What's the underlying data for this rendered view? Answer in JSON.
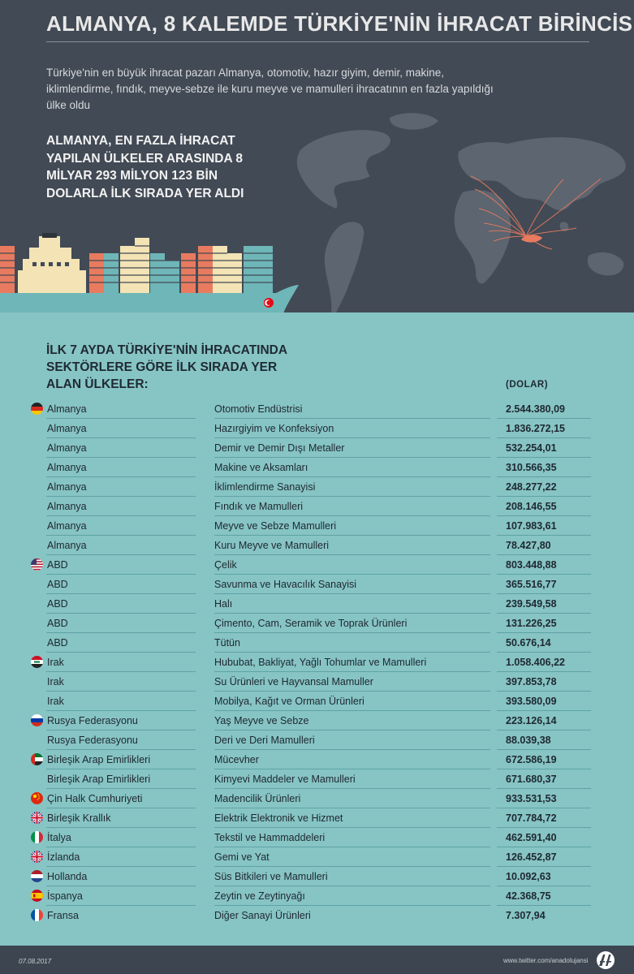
{
  "header": {
    "title": "ALMANYA, 8 KALEMDE TÜRKİYE'NİN İHRACAT BİRİNCİSİ",
    "subtitle": "Türkiye'nin en büyük ihracat pazarı Almanya, otomotiv, hazır giyim, demir, makine, iklimlendirme, fındık, meyve-sebze ile kuru meyve ve mamulleri ihracatının en fazla yapıldığı ülke oldu",
    "headline": "ALMANYA, EN FAZLA İHRACAT YAPILAN ÜLKELER ARASINDA 8 MİLYAR 293 MİLYON 123 BİN DOLARLA İLK SIRADA YER ALDI"
  },
  "table": {
    "title": "İLK 7 AYDA TÜRKİYE'NİN İHRACATINDA SEKTÖRLERE GÖRE İLK SIRADA YER ALAN ÜLKELER:",
    "unit_label": "(DOLAR)",
    "rows": [
      {
        "flag": "germany-flag-icon",
        "country": "Almanya",
        "sector": "Otomotiv Endüstrisi",
        "value": "2.544.380,09"
      },
      {
        "flag": "",
        "country": "Almanya",
        "sector": "Hazırgiyim ve Konfeksiyon",
        "value": "1.836.272,15"
      },
      {
        "flag": "",
        "country": "Almanya",
        "sector": "Demir ve Demir Dışı Metaller",
        "value": "532.254,01"
      },
      {
        "flag": "",
        "country": "Almanya",
        "sector": "Makine ve Aksamları",
        "value": "310.566,35"
      },
      {
        "flag": "",
        "country": "Almanya",
        "sector": "İklimlendirme Sanayisi",
        "value": "248.277,22"
      },
      {
        "flag": "",
        "country": "Almanya",
        "sector": "Fındık ve Mamulleri",
        "value": "208.146,55"
      },
      {
        "flag": "",
        "country": "Almanya",
        "sector": "Meyve ve Sebze Mamulleri",
        "value": "107.983,61"
      },
      {
        "flag": "",
        "country": "Almanya",
        "sector": "Kuru Meyve ve Mamulleri",
        "value": "78.427,80"
      },
      {
        "flag": "usa-flag-icon",
        "country": "ABD",
        "sector": "Çelik",
        "value": "803.448,88"
      },
      {
        "flag": "",
        "country": "ABD",
        "sector": "Savunma ve Havacılık Sanayisi",
        "value": "365.516,77"
      },
      {
        "flag": "",
        "country": "ABD",
        "sector": "Halı",
        "value": "239.549,58"
      },
      {
        "flag": "",
        "country": "ABD",
        "sector": "Çimento, Cam, Seramik ve Toprak Ürünleri",
        "value": "131.226,25"
      },
      {
        "flag": "",
        "country": "ABD",
        "sector": "Tütün",
        "value": "50.676,14"
      },
      {
        "flag": "iraq-flag-icon",
        "country": "Irak",
        "sector": "Hububat, Bakliyat, Yağlı Tohumlar ve Mamulleri",
        "value": "1.058.406,22"
      },
      {
        "flag": "",
        "country": "Irak",
        "sector": "Su Ürünleri ve Hayvansal Mamuller",
        "value": "397.853,78"
      },
      {
        "flag": "",
        "country": "Irak",
        "sector": "Mobilya, Kağıt ve Orman Ürünleri",
        "value": "393.580,09"
      },
      {
        "flag": "russia-flag-icon",
        "country": "Rusya Federasyonu",
        "sector": "Yaş Meyve ve Sebze",
        "value": "223.126,14"
      },
      {
        "flag": "",
        "country": "Rusya Federasyonu",
        "sector": "Deri ve Deri Mamulleri",
        "value": "88.039,38"
      },
      {
        "flag": "uae-flag-icon",
        "country": "Birleşik Arap Emirlikleri",
        "sector": "Mücevher",
        "value": "672.586,19"
      },
      {
        "flag": "",
        "country": "Birleşik Arap Emirlikleri",
        "sector": "Kimyevi Maddeler ve Mamulleri",
        "value": "671.680,37"
      },
      {
        "flag": "china-flag-icon",
        "country": "Çin Halk Cumhuriyeti",
        "sector": "Madencilik Ürünleri",
        "value": "933.531,53"
      },
      {
        "flag": "uk-flag-icon",
        "country": "Birleşik Krallık",
        "sector": "Elektrik Elektronik ve Hizmet",
        "value": "707.784,72"
      },
      {
        "flag": "italy-flag-icon",
        "country": "İtalya",
        "sector": "Tekstil ve Hammaddeleri",
        "value": "462.591,40"
      },
      {
        "flag": "iceland-flag-icon",
        "country": "İzlanda",
        "sector": "Gemi ve Yat",
        "value": "126.452,87"
      },
      {
        "flag": "netherlands-flag-icon",
        "country": "Hollanda",
        "sector": "Süs Bitkileri ve Mamulleri",
        "value": "10.092,63"
      },
      {
        "flag": "spain-flag-icon",
        "country": "İspanya",
        "sector": "Zeytin ve Zeytinyağı",
        "value": "42.368,75"
      },
      {
        "flag": "france-flag-icon",
        "country": "Fransa",
        "sector": "Diğer Sanayi Ürünleri",
        "value": "7.307,94"
      }
    ]
  },
  "footer": {
    "date": "07.08.2017",
    "twitter": "www.twitter.com/anadolujansi",
    "logo_icon": "aa-logo-icon"
  },
  "colors": {
    "top_bg": "#424a55",
    "table_bg": "#87c4c4",
    "ship_hull": "#e87b5f",
    "container_teal": "#6fb6b8",
    "container_cream": "#f3e3b5",
    "container_orange": "#e87b5f"
  }
}
